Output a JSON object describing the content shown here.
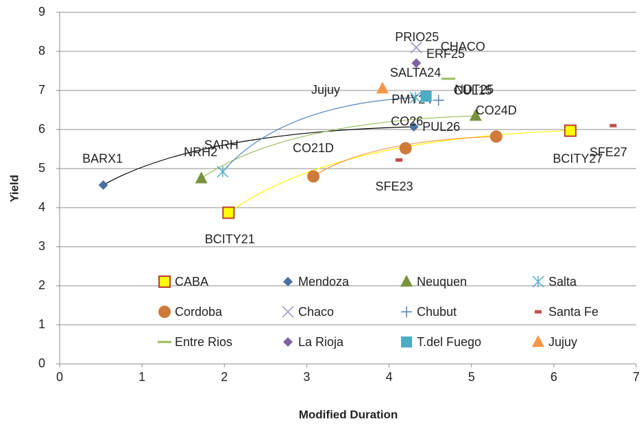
{
  "chart_data": {
    "type": "scatter",
    "x_label": "Modified Duration",
    "y_label": "Yield",
    "xlim": [
      0,
      7
    ],
    "xticks": [
      0,
      1,
      2,
      3,
      4,
      5,
      6,
      7
    ],
    "ylim": [
      0,
      9
    ],
    "yticks": [
      0,
      1,
      2,
      3,
      4,
      5,
      6,
      7,
      8,
      9
    ],
    "grid": true,
    "trendline": true,
    "series": [
      {
        "name": "CABA",
        "marker": "square",
        "color": "#ffff00",
        "edge": "#c0392b",
        "trend_color": "#ffff00",
        "x": [
          2.05,
          6.2
        ],
        "y": [
          3.87,
          5.97
        ],
        "labels": [
          "BCITY21",
          "BCITY27"
        ]
      },
      {
        "name": "Mendoza",
        "marker": "diamond",
        "color": "#4a6fa5",
        "trend_color": "#000000",
        "x": [
          0.53,
          4.3
        ],
        "y": [
          4.58,
          6.07
        ],
        "labels": [
          "BARX1",
          "PUL26"
        ]
      },
      {
        "name": "Neuquen",
        "marker": "triangle",
        "color": "#77933c",
        "trend_color": "#9bbb59",
        "x": [
          1.72,
          5.05
        ],
        "y": [
          4.75,
          6.35
        ],
        "labels": [
          "NRH2",
          "PMY24"
        ]
      },
      {
        "name": "Salta",
        "marker": "asterisk",
        "color": "#4bacc6",
        "trend_color": "#4f81bd",
        "x": [
          1.98,
          4.32
        ],
        "y": [
          4.92,
          6.82
        ],
        "labels": [
          "SARH",
          "SALTA24"
        ]
      },
      {
        "name": "Cordoba",
        "marker": "circle",
        "color": "#d07a3a",
        "trend_color": "#f79646",
        "x": [
          3.08,
          4.2,
          5.3
        ],
        "y": [
          4.8,
          5.52,
          5.82
        ],
        "labels": [
          "CO21D",
          "CO26",
          "CO24D"
        ]
      },
      {
        "name": "Chaco",
        "marker": "x",
        "color": "#9d8fc6",
        "x": [
          4.33
        ],
        "y": [
          8.1
        ],
        "labels": [
          "CHACO"
        ]
      },
      {
        "name": "Chubut",
        "marker": "plus",
        "color": "#4f81bd",
        "x": [
          4.6
        ],
        "y": [
          6.75
        ],
        "labels": [
          "CUL15"
        ]
      },
      {
        "name": "Santa Fe",
        "marker": "dash",
        "color": "#c0504d",
        "x": [
          4.12,
          6.72
        ],
        "y": [
          5.22,
          6.1
        ],
        "labels": [
          "SFE23",
          "SFE27"
        ]
      },
      {
        "name": "Entre Rios",
        "marker": "line",
        "color": "#9bbb59",
        "x": [
          4.72
        ],
        "y": [
          7.3
        ],
        "labels": [
          "ERF25"
        ]
      },
      {
        "name": "La Rioja",
        "marker": "diamond",
        "color": "#8064a2",
        "x": [
          4.33
        ],
        "y": [
          7.7
        ],
        "labels": [
          "PRIO25"
        ]
      },
      {
        "name": "T.del Fuego",
        "marker": "square",
        "color": "#4bacc6",
        "x": [
          4.45
        ],
        "y": [
          6.85
        ],
        "labels": [
          "NDT25"
        ]
      },
      {
        "name": "Jujuy",
        "marker": "triangle",
        "color": "#f79646",
        "x": [
          3.92
        ],
        "y": [
          7.05
        ],
        "labels": [
          "Jujuy"
        ]
      }
    ]
  }
}
